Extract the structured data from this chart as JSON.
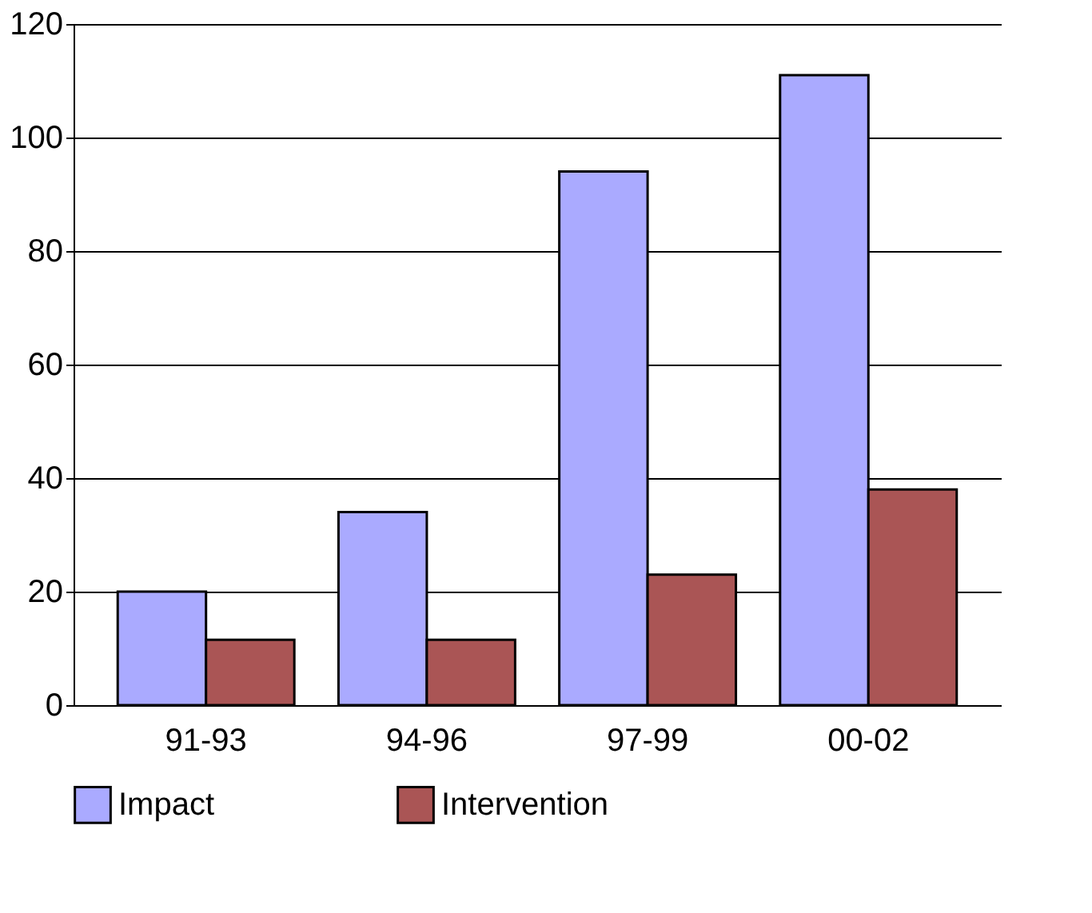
{
  "chart_data": {
    "type": "bar",
    "categories": [
      "91-93",
      "94-96",
      "97-99",
      "00-02"
    ],
    "series": [
      {
        "name": "Impact",
        "color": "#aaaaff",
        "values": [
          20,
          34,
          94,
          111
        ]
      },
      {
        "name": "Intervention",
        "color": "#aa5555",
        "values": [
          11.5,
          11.5,
          23,
          38
        ]
      }
    ],
    "ylim": [
      0,
      120
    ],
    "yticks": [
      0,
      20,
      40,
      60,
      80,
      100,
      120
    ],
    "grid": "y",
    "legend": "bottom"
  }
}
